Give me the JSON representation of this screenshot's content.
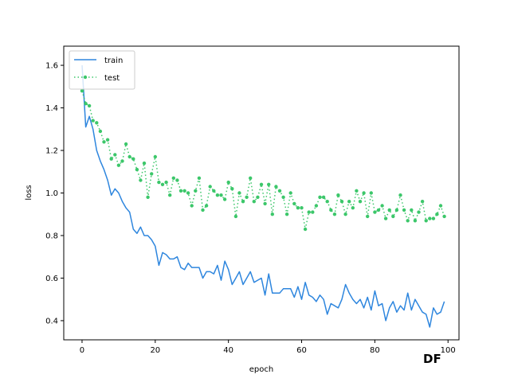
{
  "chart_data": {
    "type": "line",
    "title": "",
    "xlabel": "epoch",
    "ylabel": "loss",
    "xlim": [
      -5,
      103
    ],
    "ylim": [
      0.31,
      1.69
    ],
    "x_ticks": [
      0,
      20,
      40,
      60,
      80,
      100
    ],
    "y_ticks": [
      0.4,
      0.6,
      0.8,
      1.0,
      1.2,
      1.4,
      1.6
    ],
    "x_tick_labels": [
      "0",
      "20",
      "40",
      "60",
      "80",
      "100"
    ],
    "y_tick_labels": [
      "0.4",
      "0.6",
      "0.8",
      "1.0",
      "1.2",
      "1.4",
      "1.6"
    ],
    "grid": false,
    "legend_position": "upper-left",
    "x": [
      0,
      1,
      2,
      3,
      4,
      5,
      6,
      7,
      8,
      9,
      10,
      11,
      12,
      13,
      14,
      15,
      16,
      17,
      18,
      19,
      20,
      21,
      22,
      23,
      24,
      25,
      26,
      27,
      28,
      29,
      30,
      31,
      32,
      33,
      34,
      35,
      36,
      37,
      38,
      39,
      40,
      41,
      42,
      43,
      44,
      45,
      46,
      47,
      48,
      49,
      50,
      51,
      52,
      53,
      54,
      55,
      56,
      57,
      58,
      59,
      60,
      61,
      62,
      63,
      64,
      65,
      66,
      67,
      68,
      69,
      70,
      71,
      72,
      73,
      74,
      75,
      76,
      77,
      78,
      79,
      80,
      81,
      82,
      83,
      84,
      85,
      86,
      87,
      88,
      89,
      90,
      91,
      92,
      93,
      94,
      95,
      96,
      97,
      98,
      99
    ],
    "series": [
      {
        "name": "train",
        "color": "#2e86de",
        "style": "solid",
        "values": [
          1.6,
          1.31,
          1.36,
          1.3,
          1.2,
          1.15,
          1.11,
          1.06,
          0.99,
          1.02,
          1.0,
          0.96,
          0.93,
          0.91,
          0.83,
          0.81,
          0.84,
          0.8,
          0.8,
          0.78,
          0.75,
          0.66,
          0.72,
          0.71,
          0.69,
          0.69,
          0.7,
          0.65,
          0.64,
          0.67,
          0.65,
          0.65,
          0.65,
          0.6,
          0.63,
          0.63,
          0.62,
          0.66,
          0.59,
          0.68,
          0.64,
          0.57,
          0.6,
          0.63,
          0.57,
          0.6,
          0.63,
          0.58,
          0.59,
          0.6,
          0.52,
          0.62,
          0.53,
          0.53,
          0.53,
          0.55,
          0.55,
          0.55,
          0.51,
          0.56,
          0.5,
          0.58,
          0.52,
          0.51,
          0.49,
          0.52,
          0.5,
          0.43,
          0.48,
          0.47,
          0.46,
          0.5,
          0.57,
          0.53,
          0.5,
          0.48,
          0.5,
          0.46,
          0.51,
          0.45,
          0.54,
          0.47,
          0.48,
          0.4,
          0.46,
          0.49,
          0.44,
          0.47,
          0.45,
          0.53,
          0.45,
          0.5,
          0.47,
          0.44,
          0.43,
          0.37,
          0.46,
          0.43,
          0.44,
          0.49
        ]
      },
      {
        "name": "test",
        "color": "#3cc76a",
        "style": "dotted-markers",
        "values": [
          1.48,
          1.42,
          1.41,
          1.34,
          1.33,
          1.29,
          1.24,
          1.25,
          1.16,
          1.18,
          1.13,
          1.15,
          1.23,
          1.17,
          1.16,
          1.11,
          1.06,
          1.14,
          0.98,
          1.09,
          1.17,
          1.05,
          1.04,
          1.05,
          0.99,
          1.07,
          1.06,
          1.01,
          1.01,
          1.0,
          0.94,
          1.01,
          1.07,
          0.92,
          0.94,
          1.03,
          1.01,
          0.99,
          0.99,
          0.97,
          1.05,
          1.02,
          0.89,
          1.0,
          0.96,
          0.98,
          1.07,
          0.96,
          0.98,
          1.04,
          0.95,
          1.04,
          0.9,
          1.03,
          1.01,
          0.98,
          0.9,
          1.0,
          0.95,
          0.93,
          0.93,
          0.83,
          0.91,
          0.91,
          0.94,
          0.98,
          0.98,
          0.96,
          0.92,
          0.9,
          0.99,
          0.96,
          0.9,
          0.96,
          0.93,
          1.01,
          0.96,
          1.0,
          0.89,
          1.0,
          0.91,
          0.92,
          0.94,
          0.88,
          0.92,
          0.89,
          0.92,
          0.99,
          0.92,
          0.87,
          0.92,
          0.87,
          0.91,
          0.96,
          0.87,
          0.88,
          0.88,
          0.9,
          0.94,
          0.89
        ]
      }
    ]
  },
  "watermark": {
    "text": "DF",
    "color": "#e8913c"
  }
}
